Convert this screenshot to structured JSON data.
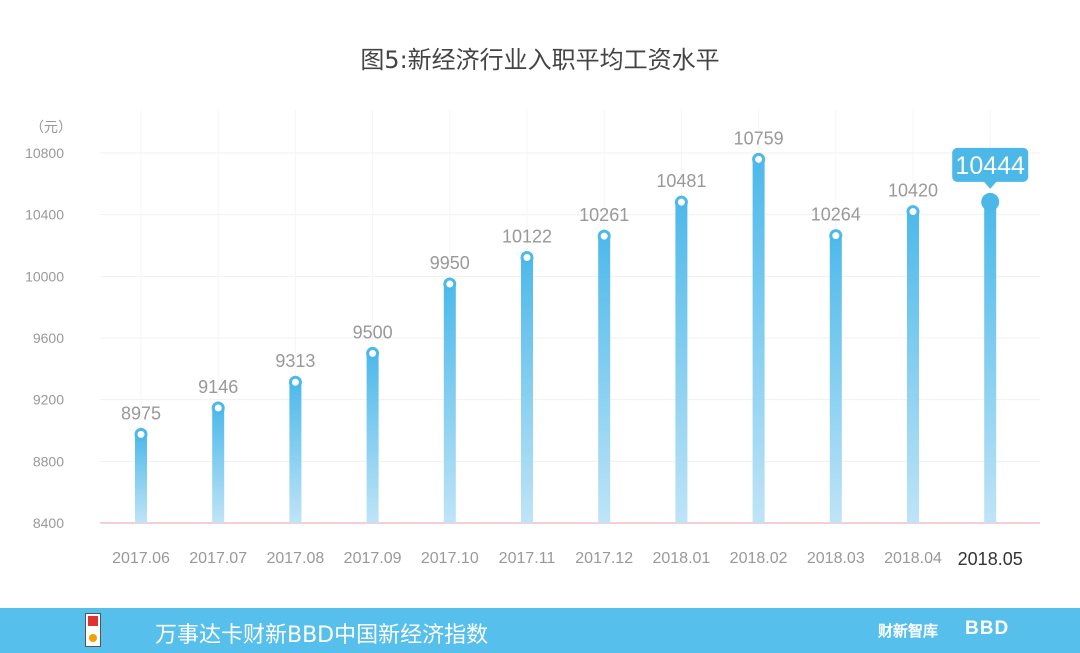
{
  "chart_data": {
    "type": "bar",
    "title": "图5:新经济行业入职平均工资水平",
    "ylabel": "（元）",
    "ylim": [
      8400,
      10800
    ],
    "yticks": [
      8400,
      8800,
      9200,
      9600,
      10000,
      10400,
      10800
    ],
    "categories": [
      "2017.06",
      "2017.07",
      "2017.08",
      "2017.09",
      "2017.10",
      "2017.11",
      "2017.12",
      "2018.01",
      "2018.02",
      "2018.03",
      "2018.04",
      "2018.05"
    ],
    "values": [
      8975,
      9146,
      9313,
      9500,
      9950,
      10122,
      10261,
      10481,
      10759,
      10264,
      10420,
      10444
    ],
    "highlight_index": 11,
    "grid": true,
    "colors": {
      "bar_top": "#4db9ea",
      "bar_bottom": "#bfe4f7",
      "highlight": "#4cb8e8",
      "baseline": "#e8a0a8",
      "label": "#999999"
    }
  },
  "footer": {
    "title": "万事达卡财新BBD中国新经济指数",
    "logo_mid": "财新智库",
    "logo_right": "BBD"
  }
}
